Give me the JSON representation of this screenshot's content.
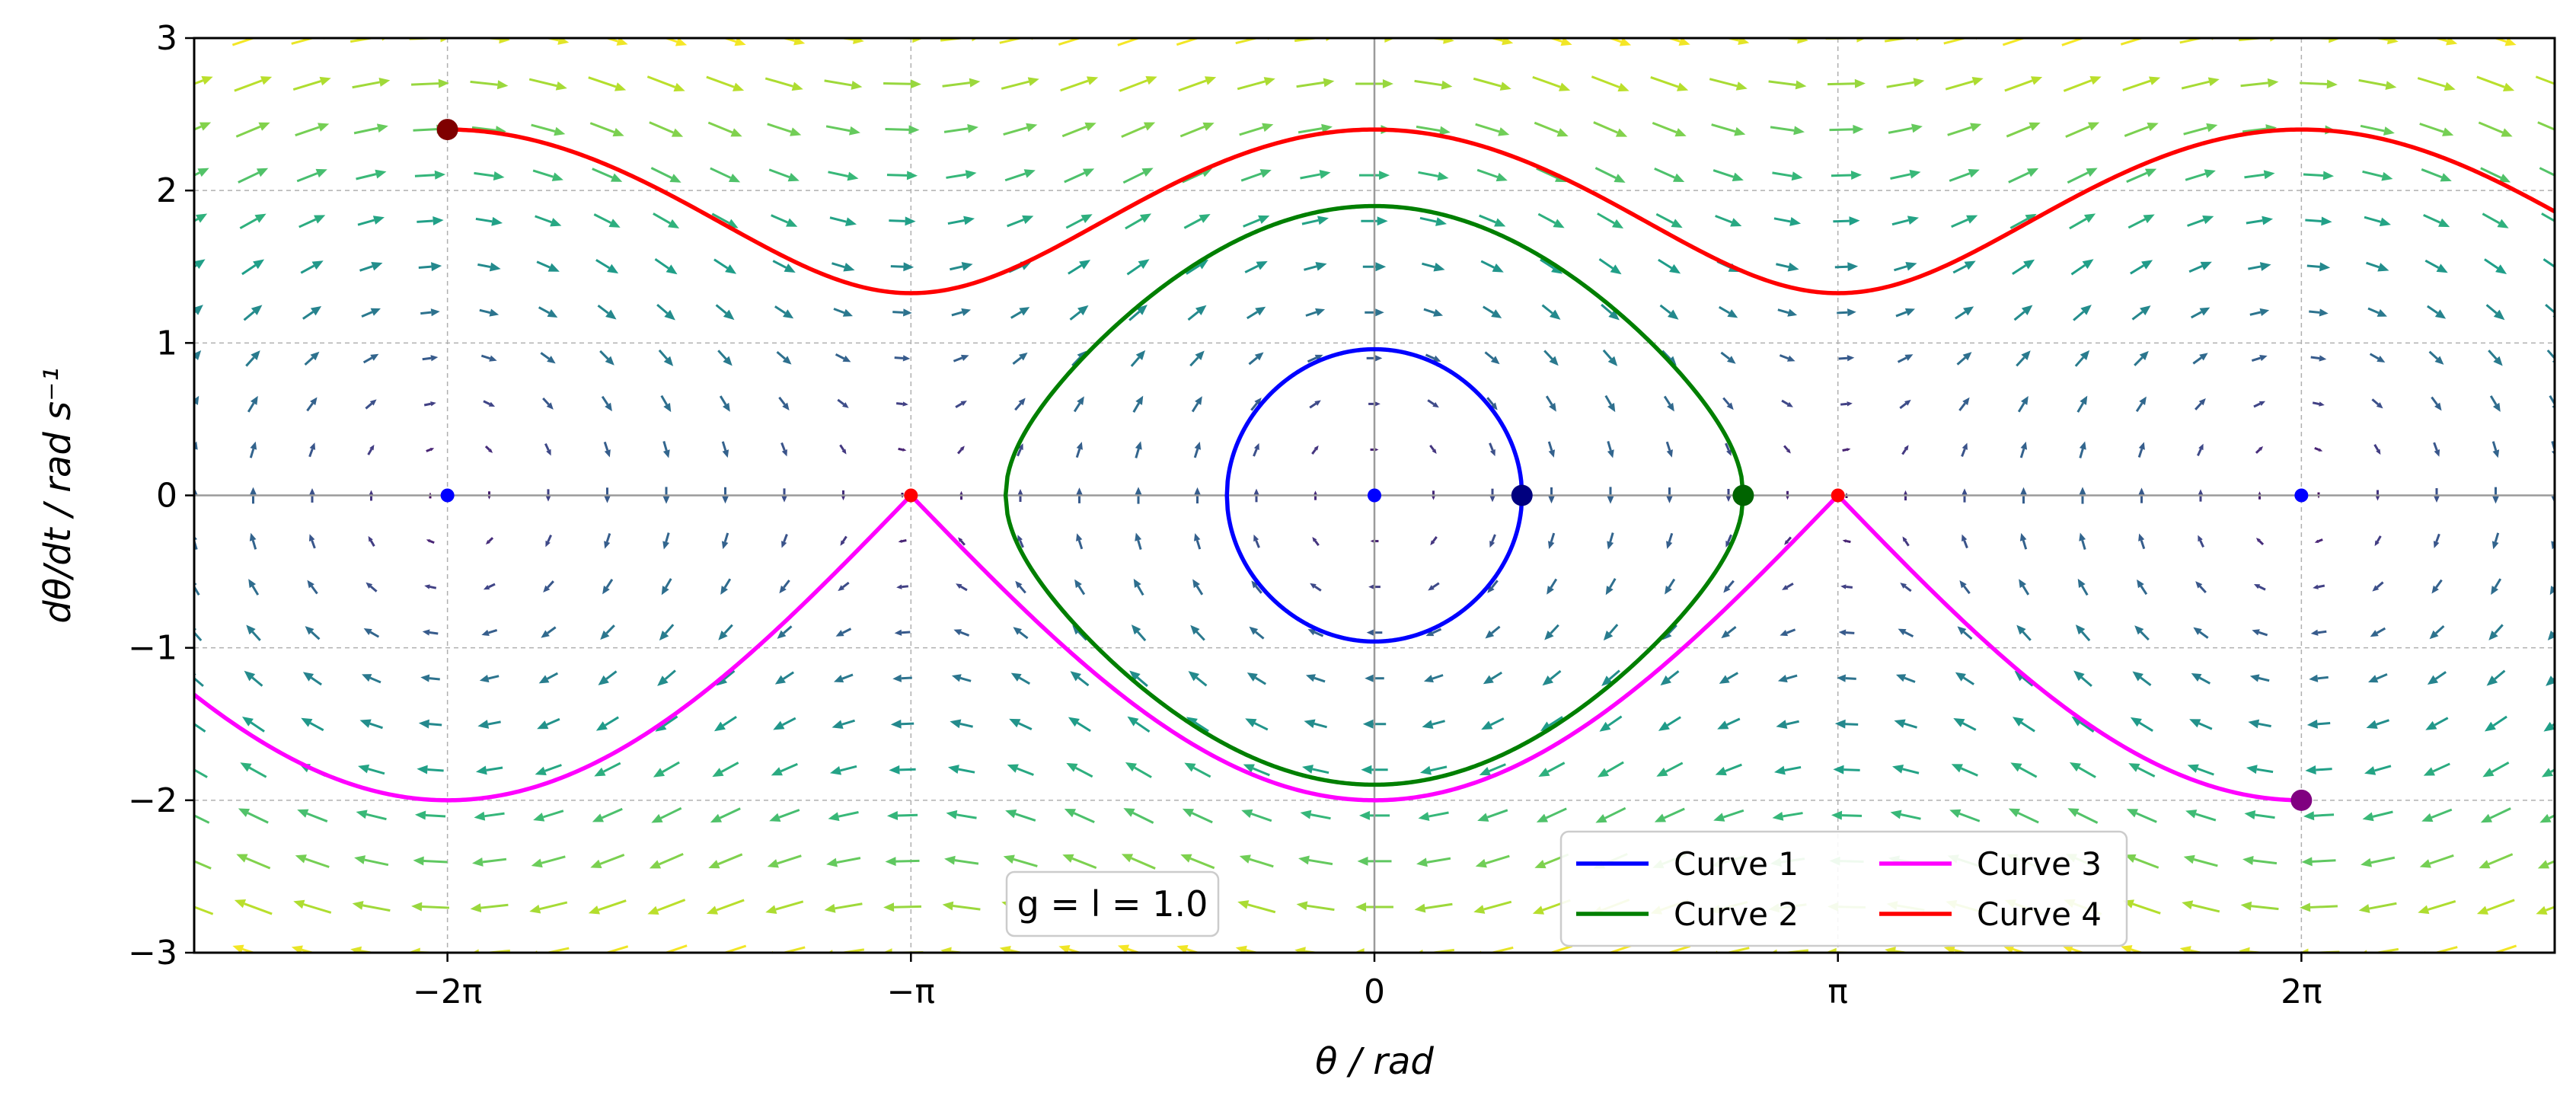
{
  "chart_data": {
    "type": "line",
    "title": "",
    "xlabel": "θ / rad",
    "ylabel": "dθ/dt / rad s⁻¹",
    "xlim": [
      -8.0,
      8.0
    ],
    "ylim": [
      -3,
      3
    ],
    "x_scale": "linear",
    "y_scale": "linear",
    "grid": true,
    "x_ticks": [
      {
        "value": -6.283185,
        "label": "−2π"
      },
      {
        "value": -3.141593,
        "label": "−π"
      },
      {
        "value": 0,
        "label": "0"
      },
      {
        "value": 3.141593,
        "label": "π"
      },
      {
        "value": 6.283185,
        "label": "2π"
      }
    ],
    "y_ticks": [
      {
        "value": -3,
        "label": "−3"
      },
      {
        "value": -2,
        "label": "−2"
      },
      {
        "value": -1,
        "label": "−1"
      },
      {
        "value": 0,
        "label": "0"
      },
      {
        "value": 1,
        "label": "1"
      },
      {
        "value": 2,
        "label": "2"
      },
      {
        "value": 3,
        "label": "3"
      }
    ],
    "series": [
      {
        "name": "Curve 1",
        "color": "#0000ff",
        "kind": "closed",
        "amplitude": 1.0,
        "start": [
          1.0,
          0
        ]
      },
      {
        "name": "Curve 2",
        "color": "#007f00",
        "kind": "closed",
        "amplitude": 2.5,
        "start": [
          2.5,
          0
        ]
      },
      {
        "name": "Curve 3",
        "color": "#ff00ff",
        "kind": "open",
        "branch": "lower",
        "x_range": [
          -8.0,
          6.283185
        ],
        "min_speed": 2.0,
        "start": [
          6.283185,
          -2.0
        ],
        "start_color": "#800080"
      },
      {
        "name": "Curve 4",
        "color": "#ff0000",
        "kind": "open",
        "branch": "upper",
        "x_range": [
          -6.283185,
          8.0
        ],
        "max_speed": 2.4,
        "start": [
          -6.283185,
          2.4
        ],
        "start_color": "#7f0000"
      }
    ],
    "start_markers": [
      {
        "x": 1.0,
        "y": 0,
        "color": "#00007f"
      },
      {
        "x": 2.5,
        "y": 0,
        "color": "#006400"
      },
      {
        "x": 6.283185,
        "y": -2.0,
        "color": "#800080"
      },
      {
        "x": -6.283185,
        "y": 2.4,
        "color": "#7f0000"
      }
    ],
    "equilibria": {
      "stable": {
        "color": "#0000ff",
        "x": [
          -6.283185,
          0,
          6.283185
        ]
      },
      "unstable": {
        "color": "#ff0000",
        "x": [
          -3.141593,
          3.141593
        ]
      }
    },
    "vector_field": {
      "equation": "dθ/dt = ω, dω/dt = −(g/l)·sin θ",
      "colormap": "viridis"
    },
    "legend": {
      "placement": "lower-right",
      "columns": 2,
      "entries": [
        "Curve 1",
        "Curve 2",
        "Curve 3",
        "Curve 4"
      ]
    },
    "annotation": {
      "text": "g = l = 1.0"
    }
  }
}
